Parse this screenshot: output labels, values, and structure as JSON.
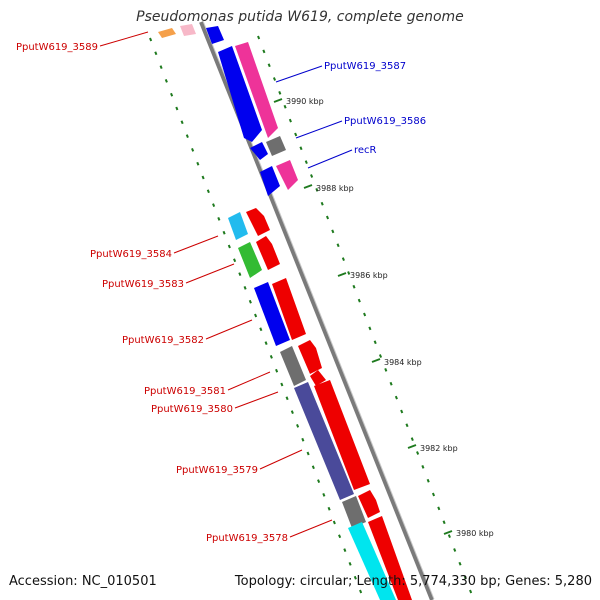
{
  "title": "Pseudomonas putida W619, complete genome",
  "footer": {
    "accession": "Accession: NC_010501",
    "summary": "Topology: circular; Length: 5,774,330 bp; Genes: 5,280"
  },
  "colors": {
    "backbone": "#7a7a7a",
    "tick": "#1e7a1e",
    "label_red": "#cc0000",
    "label_blue": "#0000cc"
  },
  "scale_ticks": [
    {
      "text": "3990 kbp"
    },
    {
      "text": "3988 kbp"
    },
    {
      "text": "3986 kbp"
    },
    {
      "text": "3984 kbp"
    },
    {
      "text": "3982 kbp"
    },
    {
      "text": "3980 kbp"
    }
  ],
  "gene_labels": [
    {
      "text": "PputW619_3589",
      "color": "red"
    },
    {
      "text": "PputW619_3587",
      "color": "blue"
    },
    {
      "text": "PputW619_3586",
      "color": "blue"
    },
    {
      "text": "recR",
      "color": "blue"
    },
    {
      "text": "PputW619_3584",
      "color": "red"
    },
    {
      "text": "PputW619_3583",
      "color": "red"
    },
    {
      "text": "PputW619_3582",
      "color": "red"
    },
    {
      "text": "PputW619_3581",
      "color": "red"
    },
    {
      "text": "PputW619_3580",
      "color": "red"
    },
    {
      "text": "PputW619_3579",
      "color": "red"
    },
    {
      "text": "PputW619_3578",
      "color": "red"
    }
  ],
  "features": [
    {
      "name": "orange-feature",
      "color": "#f5a04a"
    },
    {
      "name": "pink-feature-top",
      "color": "#f7b8c8"
    },
    {
      "name": "blue-feature-top",
      "color": "#0000ee"
    },
    {
      "name": "blue-gene-3587",
      "color": "#0000ee"
    },
    {
      "name": "pink-gene-3587",
      "color": "#ee3399"
    },
    {
      "name": "gray-gene-3586",
      "color": "#6e6e6e"
    },
    {
      "name": "blue-gene-3586",
      "color": "#0000ee"
    },
    {
      "name": "blue-gene-recR",
      "color": "#0000ee"
    },
    {
      "name": "pink-gene-recR",
      "color": "#ee3399"
    },
    {
      "name": "cyan-gene-3584",
      "color": "#22bbee"
    },
    {
      "name": "red-gene-3584",
      "color": "#ee0000"
    },
    {
      "name": "green-gene-3583",
      "color": "#33bb33"
    },
    {
      "name": "red-gene-3583",
      "color": "#ee0000"
    },
    {
      "name": "blue-gene-3582",
      "color": "#0000ee"
    },
    {
      "name": "red-gene-3582",
      "color": "#ee0000"
    },
    {
      "name": "gray-gene-3581",
      "color": "#6e6e6e"
    },
    {
      "name": "red-gene-3581",
      "color": "#ee0000"
    },
    {
      "name": "red-gene-3580",
      "color": "#ee0000"
    },
    {
      "name": "slate-gene-3579",
      "color": "#4a4a9a"
    },
    {
      "name": "red-gene-3579",
      "color": "#ee0000"
    },
    {
      "name": "gray-gene-3578",
      "color": "#6e6e6e"
    },
    {
      "name": "red-gene-3578",
      "color": "#ee0000"
    },
    {
      "name": "cyan-gene-bottom",
      "color": "#00e5ee"
    },
    {
      "name": "red-gene-bottom",
      "color": "#ee0000"
    }
  ]
}
